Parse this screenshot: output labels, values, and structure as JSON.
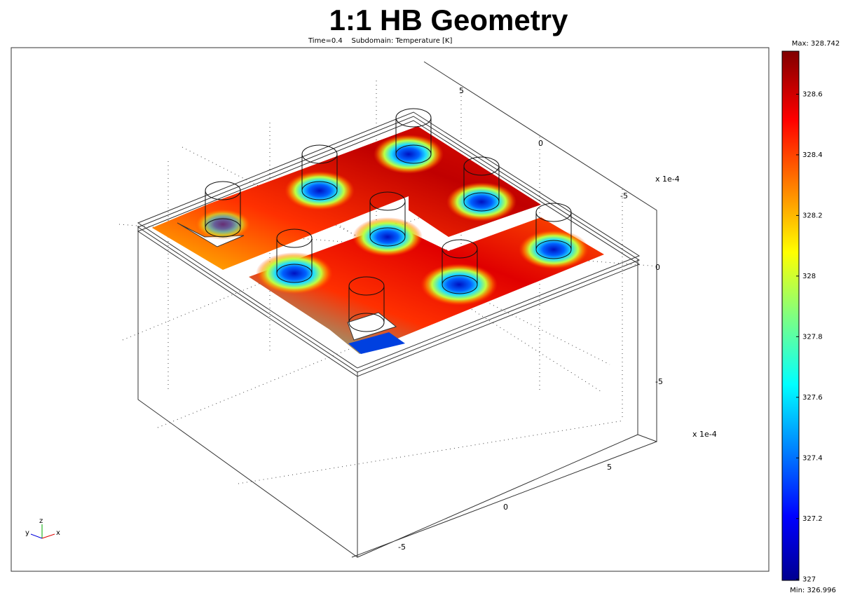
{
  "header": {
    "title": "1:1 HB Geometry",
    "subtitle": "Time=0.4    Subdomain: Temperature [K]"
  },
  "plot": {
    "y_axis_ticks": [
      5,
      0,
      -5
    ],
    "z_axis_ticks": [
      -5,
      0,
      -5
    ],
    "z_scale": "x 1e-4",
    "x_axis_ticks": [
      5,
      0,
      -5
    ],
    "x_scale": "x 1e-4",
    "triad": {
      "x": "x",
      "y": "y",
      "z": "z"
    }
  },
  "colorbar": {
    "max_label": "Max: 328.742",
    "min_label": "Min: 326.996",
    "clim": [
      326.996,
      328.742
    ],
    "ticks": [
      327,
      327.2,
      327.4,
      327.6,
      327.8,
      328,
      328.2,
      328.4,
      328.6
    ]
  }
}
